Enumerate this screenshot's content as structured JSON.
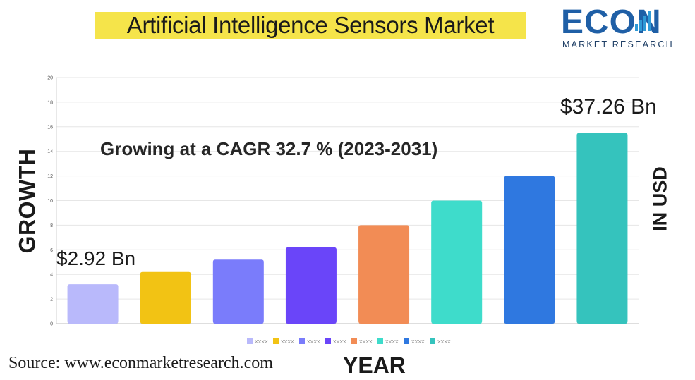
{
  "header": {
    "title": "Artificial Intelligence Sensors Market"
  },
  "logo": {
    "word": "ECON",
    "subtitle": "MARKET RESEARCH",
    "colors": {
      "primary": "#1f5fa6",
      "accent": "#2f9ad6"
    }
  },
  "annotations": {
    "cagr": "Growing at a CAGR 32.7 % (2023-2031)",
    "start_value": "$2.92 Bn",
    "end_value": "$37.26 Bn"
  },
  "axes": {
    "ylabel_left": "GROWTH",
    "ylabel_right": "IN USD",
    "xlabel": "YEAR"
  },
  "footer": {
    "source": "Source: www.econmarketresearch.com"
  },
  "chart_data": {
    "type": "bar",
    "categories": [
      "XXXX",
      "XXXX",
      "XXXX",
      "XXXX",
      "XXXX",
      "XXXX",
      "XXXX",
      "XXXX"
    ],
    "values": [
      3.2,
      4.2,
      5.2,
      6.2,
      8,
      10,
      12,
      15.5
    ],
    "colors": [
      "#b9b9fb",
      "#f2c314",
      "#7a7cfb",
      "#6a45f9",
      "#f28c55",
      "#3edccb",
      "#2f78e0",
      "#35c3bd"
    ],
    "ylim": [
      0,
      20
    ],
    "yticks": [
      0,
      2,
      4,
      6,
      8,
      10,
      12,
      14,
      16,
      18,
      20
    ],
    "grid": true,
    "legend": "bottom"
  }
}
